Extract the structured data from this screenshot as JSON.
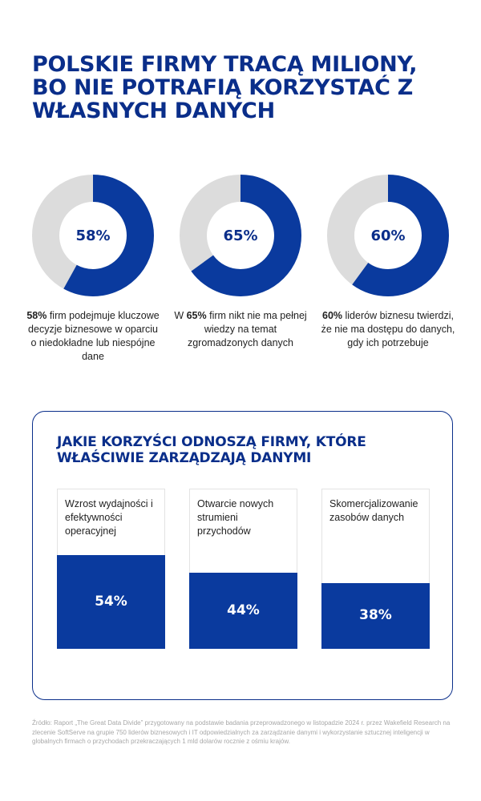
{
  "title": "POLSKIE FIRMY TRACĄ MILIONY, BO NIE POTRAFIĄ KORZYSTAĆ Z WŁASNYCH DANYCH",
  "colors": {
    "primary": "#0a3a9e",
    "title": "#0a2e8a",
    "remainder": "#dcdcdc"
  },
  "chart_data": [
    {
      "type": "pie",
      "style": "donut",
      "items": [
        {
          "value": 58,
          "label": "58%",
          "caption_bold": "58%",
          "caption_rest": " firm podejmuje kluczowe decyzje biznesowe w oparciu o niedokładne lub niespójne dane"
        },
        {
          "value": 65,
          "label": "65%",
          "caption_pre": "W ",
          "caption_bold": "65%",
          "caption_rest": " firm nikt nie ma pełnej wiedzy na temat zgromadzonych danych"
        },
        {
          "value": 60,
          "label": "60%",
          "caption_bold": "60%",
          "caption_rest": " liderów biznesu twierdzi, że nie ma dostępu do danych, gdy ich potrzebuje"
        }
      ]
    },
    {
      "type": "bar",
      "title": "JAKIE KORZYŚCI ODNOSZĄ FIRMY, KTÓRE WŁAŚCIWIE ZARZĄDZAJĄ DANYMI",
      "categories": [
        "Wzrost wydajności i efektywności operacyjnej",
        "Otwarcie nowych strumieni przychodów",
        "Skomercjalizowanie zasobów danych"
      ],
      "values": [
        54,
        44,
        38
      ],
      "value_labels": [
        "54%",
        "44%",
        "38%"
      ],
      "ylim": [
        0,
        100
      ]
    }
  ],
  "source": "Źródło: Raport „The Great Data Divide” przygotowany na podstawie badania przeprowadzonego w listopadzie 2024 r. przez Wakefield Research na zlecenie SoftServe na grupie 750 liderów biznesowych i IT odpowiedzialnych za zarządzanie danymi i wykorzystanie sztucznej inteligencji w globalnych firmach o przychodach przekraczających 1 mld dolarów rocznie z ośmiu krajów."
}
